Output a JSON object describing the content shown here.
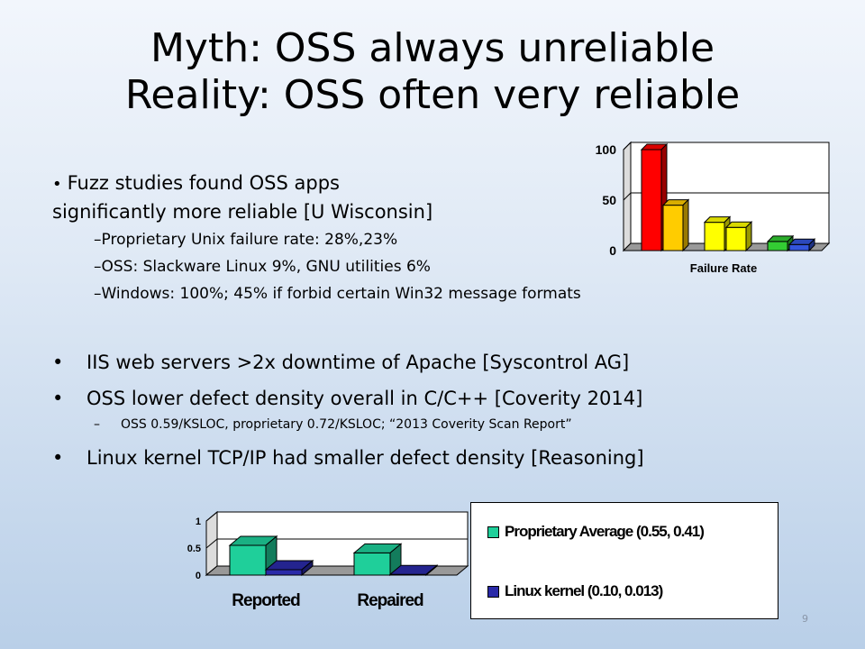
{
  "title": {
    "line1": "Myth: OSS always unreliable",
    "line2": "Reality: OSS often very reliable"
  },
  "fuzz": {
    "lead_line1": "Fuzz studies found OSS apps",
    "lead_line2": "significantly more reliable [U Wisconsin]",
    "subs": [
      "Proprietary Unix failure rate: 28%,23%",
      "OSS: Slackware Linux 9%, GNU utilities 6%",
      "Windows: 100%; 45% if forbid certain Win32 message formats"
    ]
  },
  "bullets": {
    "b1": "IIS web servers >2x downtime of Apache [Syscontrol AG]",
    "b2": "OSS lower defect density overall in C/C++ [Coverity 2014]",
    "b2_sub": "OSS 0.59/KSLOC, proprietary 0.72/KSLOC; “2013 Coverity Scan Report”",
    "b3": "Linux kernel TCP/IP had smaller defect density [Reasoning]"
  },
  "page_number": "9",
  "chart_data": [
    {
      "type": "bar",
      "title": "",
      "xlabel": "Failure Rate",
      "ylabel": "",
      "ylim": [
        0,
        100
      ],
      "yticks": [
        "0",
        "50",
        "100"
      ],
      "values": [
        100,
        45,
        28,
        23,
        9,
        6
      ],
      "colors": [
        "#ff0000",
        "#ffcc00",
        "#ffff00",
        "#ffff00",
        "#33cc33",
        "#3355dd"
      ],
      "grid": true,
      "three_d": true
    },
    {
      "type": "bar",
      "categories": [
        "Reported",
        "Repaired"
      ],
      "ylim": [
        0,
        1
      ],
      "yticks": [
        "0",
        "0.5",
        "1"
      ],
      "series": [
        {
          "name": "Proprietary Average (0.55, 0.41)",
          "values": [
            0.55,
            0.41
          ],
          "color": "#1fcf9a"
        },
        {
          "name": "Linux kernel (0.10, 0.013)",
          "values": [
            0.1,
            0.013
          ],
          "color": "#2a2aa8"
        }
      ],
      "legend": "right",
      "grid": true,
      "three_d": true
    }
  ]
}
